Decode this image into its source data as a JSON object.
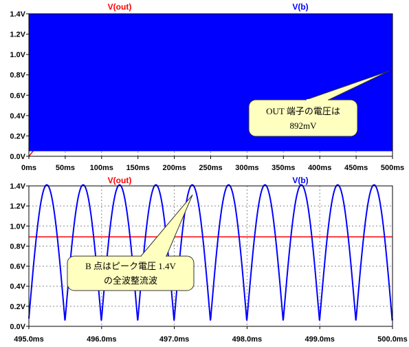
{
  "colors": {
    "out": "#ff0000",
    "b": "#0000ff",
    "grid": "#888888",
    "callout_fill": "#ffffc0"
  },
  "chart_data": [
    {
      "type": "line",
      "series": [
        {
          "name": "V(out)",
          "color": "#ff0000",
          "model": "rc_charge",
          "final": 0.892,
          "tau_ms": 100
        },
        {
          "name": "V(b)",
          "color": "#0000ff",
          "model": "full_wave_rectified",
          "peak": 1.4,
          "min": 0.05,
          "note_fill_band": true
        }
      ],
      "x": {
        "min": 0,
        "max": 500,
        "ticks": [
          0,
          50,
          100,
          150,
          200,
          250,
          300,
          350,
          400,
          450,
          500
        ],
        "tick_labels": [
          "0ms",
          "50ms",
          "100ms",
          "150ms",
          "200ms",
          "250ms",
          "300ms",
          "350ms",
          "400ms",
          "450ms",
          "500ms"
        ]
      },
      "y": {
        "min": 0,
        "max": 1.4,
        "ticks": [
          0,
          0.2,
          0.4,
          0.6,
          0.8,
          1.0,
          1.2,
          1.4
        ],
        "tick_labels": [
          "0.0V",
          "0.2V",
          "0.4V",
          "0.6V",
          "0.8V",
          "1.0V",
          "1.2V",
          "1.4V"
        ]
      },
      "grid": true,
      "callout": {
        "lines": [
          "OUT 端子の電圧は",
          "892mV"
        ]
      }
    },
    {
      "type": "line",
      "series": [
        {
          "name": "V(out)",
          "color": "#ff0000",
          "model": "constant",
          "value": 0.892
        },
        {
          "name": "V(b)",
          "color": "#0000ff",
          "model": "full_wave_rectified",
          "peak": 1.41,
          "min": 0.05,
          "period_ms": 0.5,
          "phase_ms": 495.0
        }
      ],
      "x": {
        "min": 495.0,
        "max": 500.0,
        "ticks": [
          495.0,
          496.0,
          497.0,
          498.0,
          499.0,
          500.0
        ],
        "tick_labels": [
          "495.0ms",
          "496.0ms",
          "497.0ms",
          "498.0ms",
          "499.0ms",
          "500.0ms"
        ]
      },
      "y": {
        "min": 0,
        "max": 1.4,
        "ticks": [
          0,
          0.2,
          0.4,
          0.6,
          0.8,
          1.0,
          1.2,
          1.4
        ],
        "tick_labels": [
          "0.0V",
          "0.2V",
          "0.4V",
          "0.6V",
          "0.8V",
          "1.0V",
          "1.2V",
          "1.4V"
        ]
      },
      "grid": true,
      "callout": {
        "lines": [
          "B 点はピーク電圧 1.4V",
          "の全波整流波"
        ]
      }
    }
  ]
}
